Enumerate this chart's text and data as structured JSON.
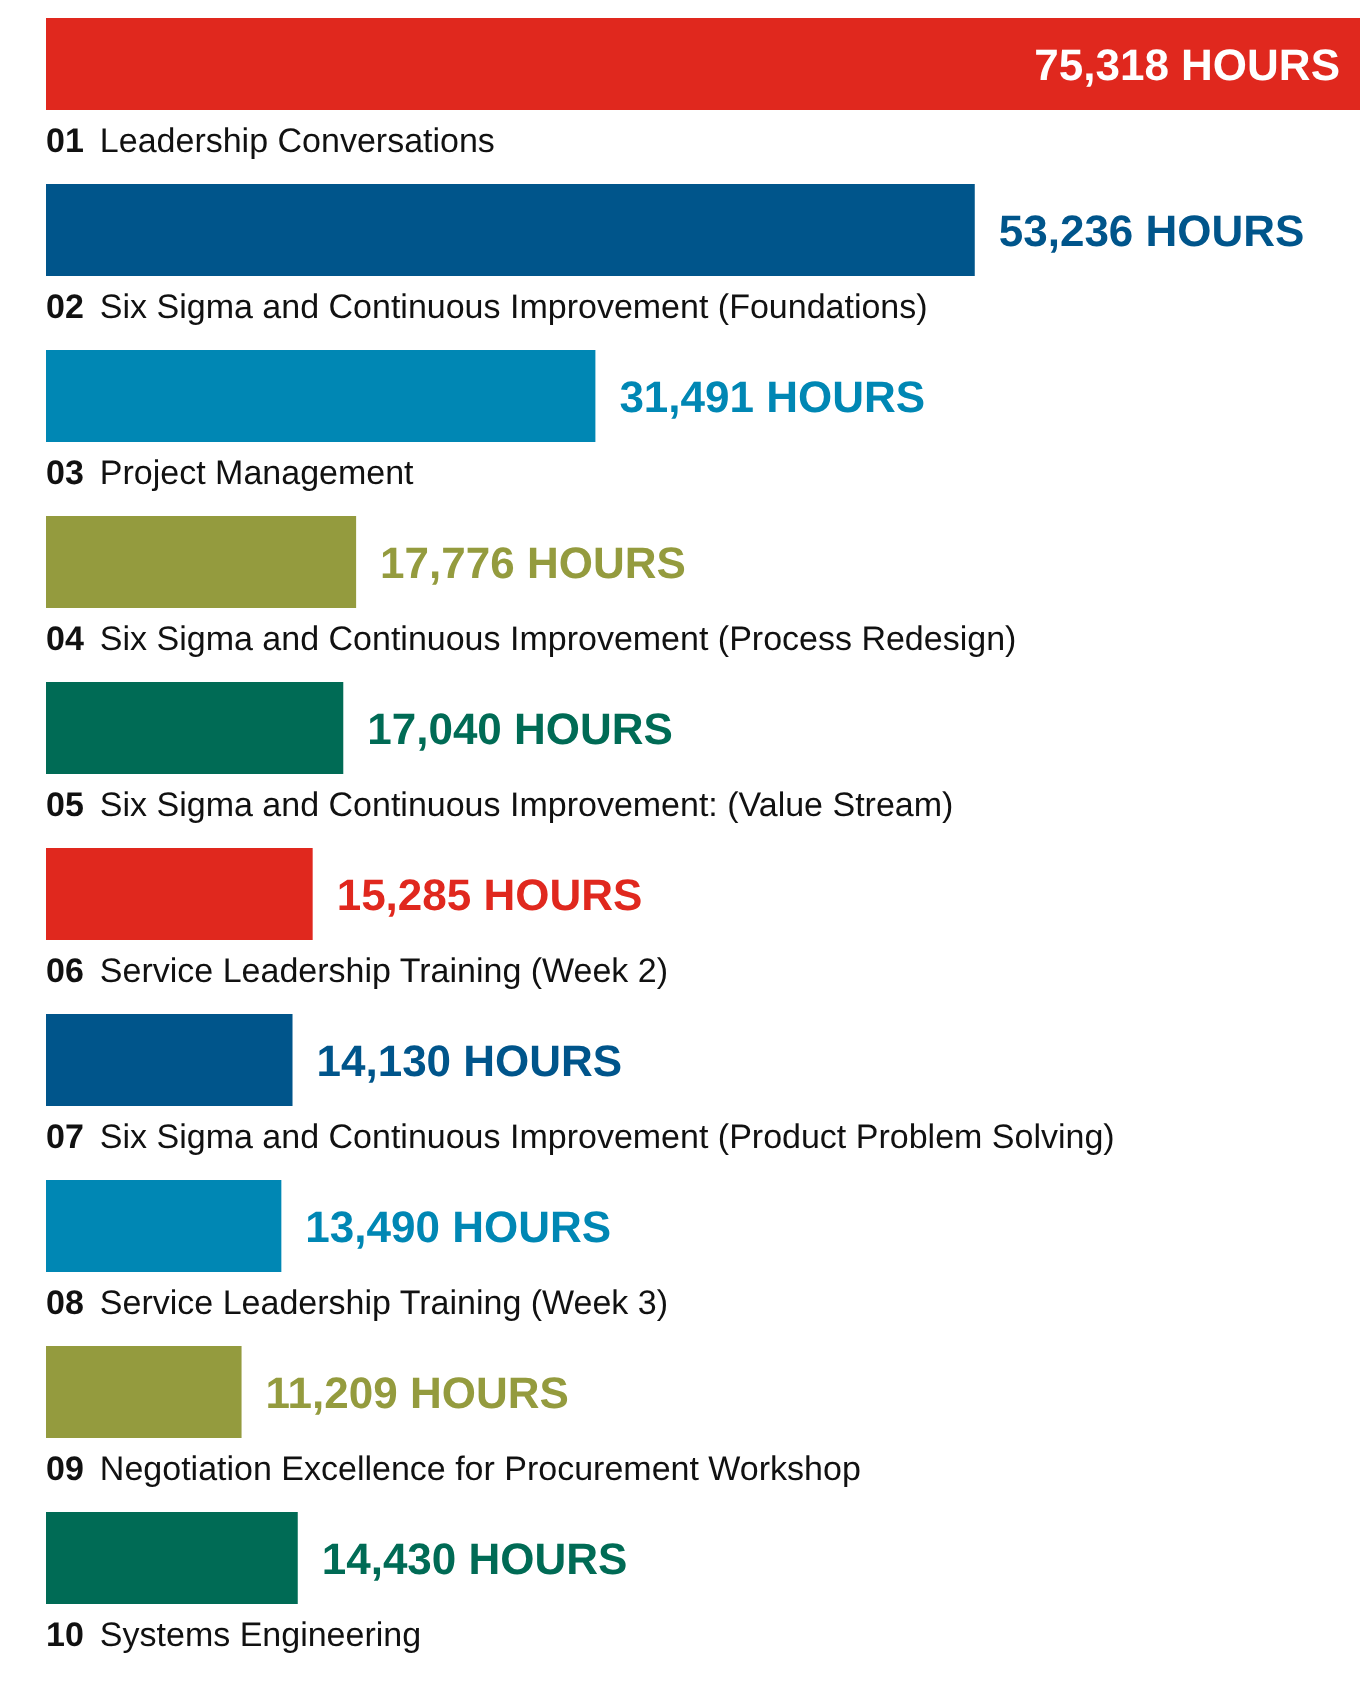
{
  "chart_data": {
    "type": "bar",
    "orientation": "horizontal",
    "categories": [
      "01 Leadership Conversations",
      "02 Six Sigma and Continuous Improvement (Foundations)",
      "03 Project Management",
      "04 Six Sigma and Continuous Improvement (Process Redesign)",
      "05 Six Sigma and Continuous Improvement: (Value Stream)",
      "06 Service Leadership Training (Week 2)",
      "07 Six Sigma and Continuous Improvement (Product Problem Solving)",
      "08 Service Leadership Training (Week 3)",
      "09 Negotiation Excellence for Procurement Workshop",
      "10 Systems Engineering"
    ],
    "values": [
      75318,
      53236,
      31491,
      17776,
      17040,
      15285,
      14130,
      13490,
      11209,
      14430
    ],
    "value_labels": [
      "75,318 HOURS",
      "53,236 HOURS",
      "31,491 HOURS",
      "17,776 HOURS",
      "17,040 HOURS",
      "15,285 HOURS",
      "14,130 HOURS",
      "13,490 HOURS",
      "11,209 HOURS",
      "14,430 HOURS"
    ],
    "colors": [
      "#e0281e",
      "#00558b",
      "#0087b4",
      "#949b3e",
      "#006b55",
      "#e0281e",
      "#00558b",
      "#0087b4",
      "#949b3e",
      "#006b55"
    ]
  }
}
